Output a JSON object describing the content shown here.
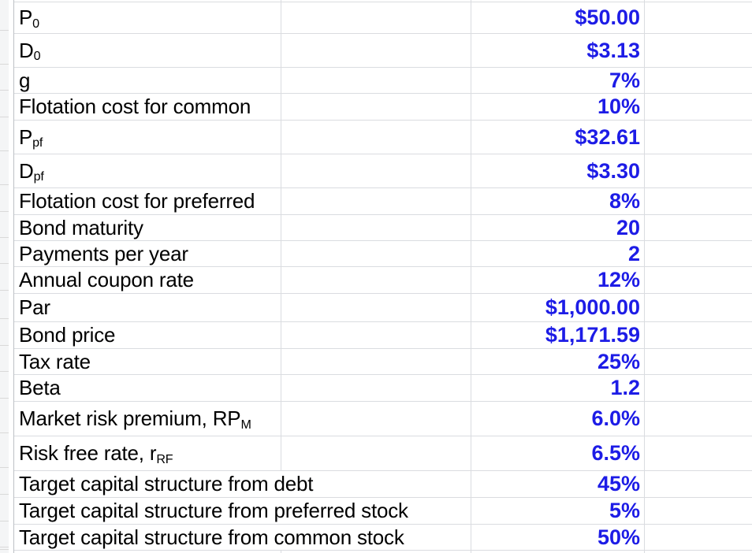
{
  "sheet": {
    "colors": {
      "gridline": "#dadce0",
      "row_header_bg": "#f4f5f6",
      "row_header_border": "#bdc1c6",
      "value_text": "#1d1ce6",
      "label_text": "#000000"
    },
    "rows": [
      {
        "label": {
          "text": "P",
          "sub": "0"
        },
        "value": "$50.00"
      },
      {
        "label": {
          "text": "D",
          "sub": "0"
        },
        "value": "$3.13"
      },
      {
        "label": {
          "text": "g",
          "sub": ""
        },
        "value": "7%"
      },
      {
        "label": {
          "text": "Flotation cost for common",
          "sub": ""
        },
        "value": "10%"
      },
      {
        "label": {
          "text": "P",
          "sub": "pf"
        },
        "value": "$32.61"
      },
      {
        "label": {
          "text": "D",
          "sub": "pf"
        },
        "value": "$3.30"
      },
      {
        "label": {
          "text": "Flotation cost for preferred",
          "sub": ""
        },
        "value": "8%"
      },
      {
        "label": {
          "text": "Bond maturity",
          "sub": ""
        },
        "value": "20"
      },
      {
        "label": {
          "text": "Payments per year",
          "sub": ""
        },
        "value": "2"
      },
      {
        "label": {
          "text": "Annual coupon rate",
          "sub": ""
        },
        "value": "12%"
      },
      {
        "label": {
          "text": "Par",
          "sub": ""
        },
        "value": "$1,000.00"
      },
      {
        "label": {
          "text": "Bond price",
          "sub": ""
        },
        "value": "$1,171.59"
      },
      {
        "label": {
          "text": "Tax rate",
          "sub": ""
        },
        "value": "25%"
      },
      {
        "label": {
          "text": "Beta",
          "sub": ""
        },
        "value": "1.2"
      },
      {
        "label": {
          "text": "Market risk premium, RP",
          "sub": "M"
        },
        "value": "6.0%"
      },
      {
        "label": {
          "text": "Risk free rate, r",
          "sub": "RF"
        },
        "value": "6.5%"
      },
      {
        "label": {
          "text": "Target capital structure from debt",
          "sub": ""
        },
        "value": "45%"
      },
      {
        "label": {
          "text": "Target capital structure from preferred stock",
          "sub": ""
        },
        "value": "5%"
      },
      {
        "label": {
          "text": "Target capital structure from common stock",
          "sub": ""
        },
        "value": "50%"
      }
    ]
  }
}
